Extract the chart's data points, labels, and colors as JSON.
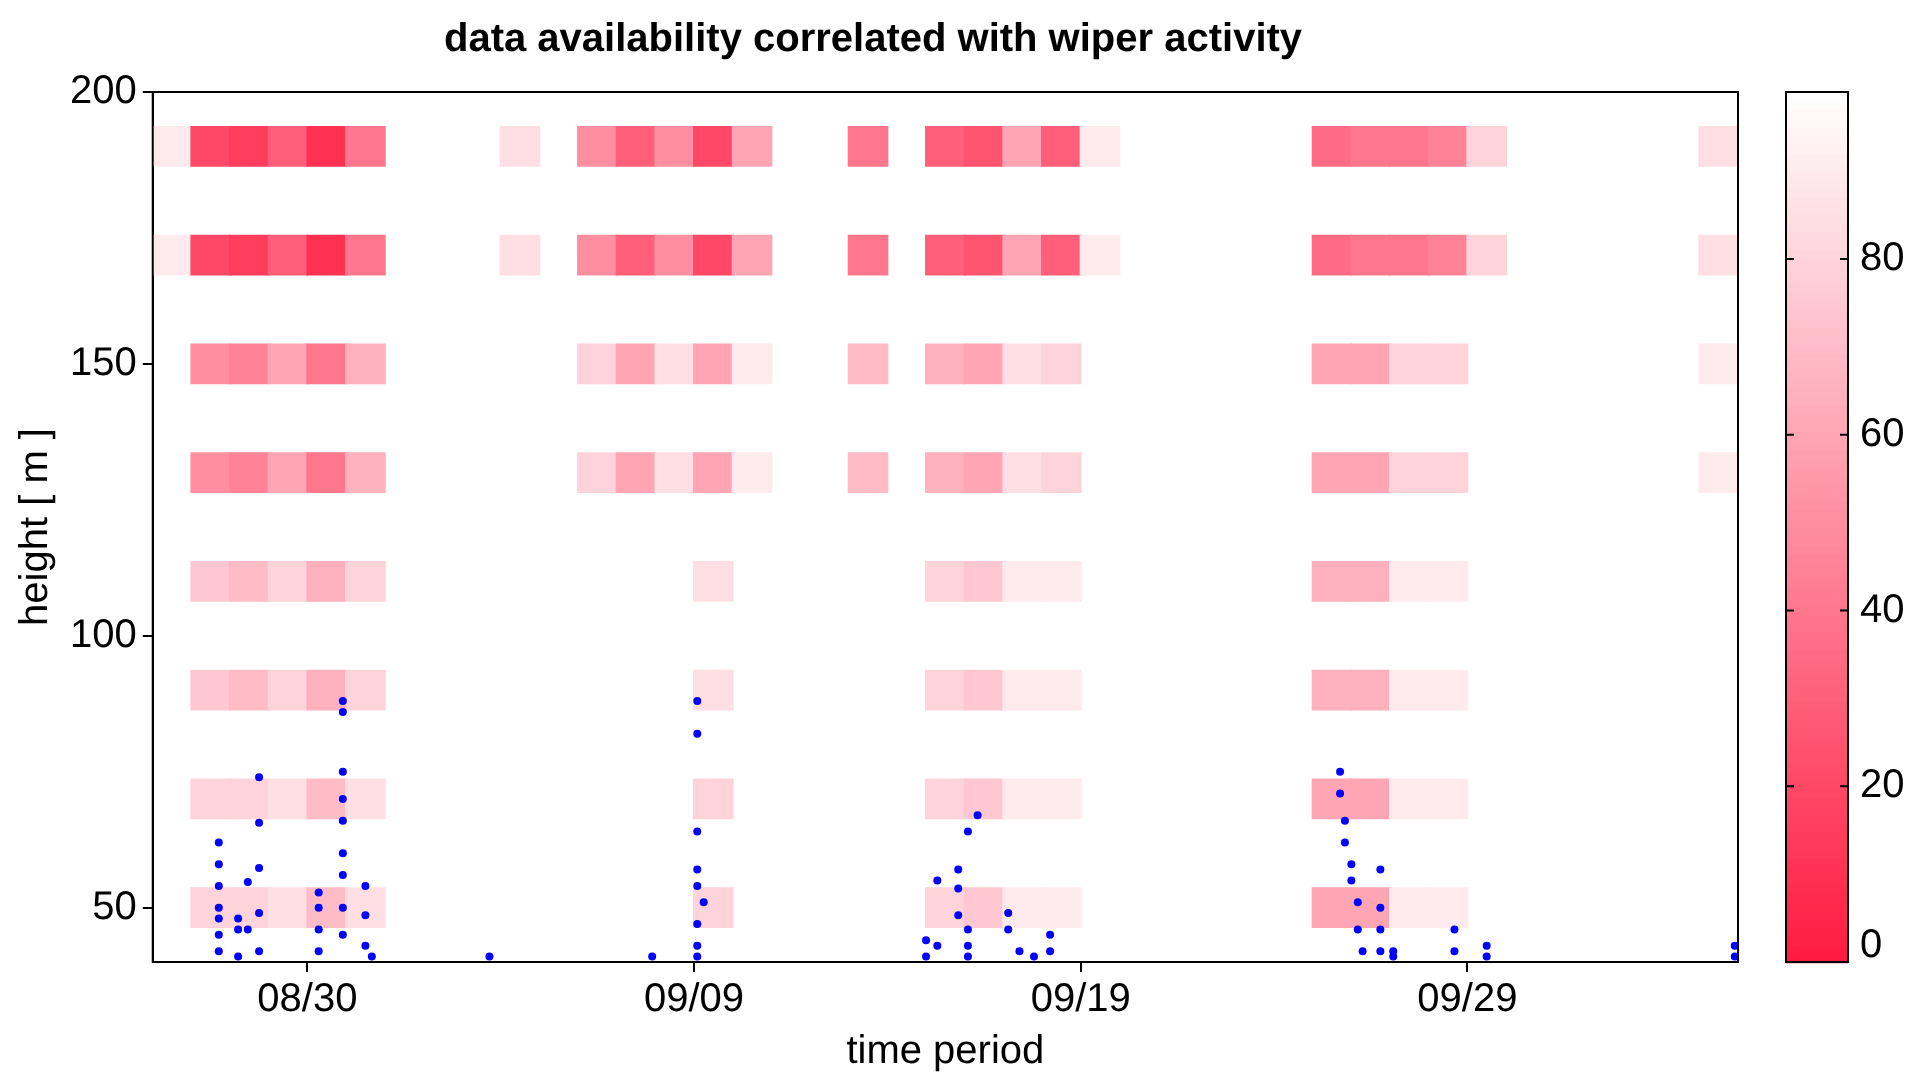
{
  "chart_data": {
    "type": "scatter",
    "title": "data availability correlated with wiper activity",
    "xlabel": "time period",
    "ylabel": "height [ m ]",
    "clim": [
      0,
      99
    ],
    "cticks": [
      0,
      20,
      40,
      60,
      80
    ],
    "legend": false,
    "series": [
      {
        "marker": "square",
        "colors": [
          "#ffeaee",
          "#ffeaee",
          "#ff4867",
          "#ff4867",
          "#ff8ea0",
          "#ff8ea0",
          "#ffc7d1",
          "#ffc7d1",
          "#ffd3da",
          "#ffd3da",
          "#ff3d5d",
          "#ff3d5d",
          "#ff8297",
          "#ff8297",
          "#ffbcc7",
          "#ffbcc7",
          "#ffd3da",
          "#ffd3da",
          "#ff5f7a",
          "#ff5f7a",
          "#ffa5b4",
          "#ffa5b4",
          "#ffd3da",
          "#ffd3da",
          "#ffdfe4",
          "#ffdfe4",
          "#ff3153",
          "#ff3153",
          "#ff778d",
          "#ff778d",
          "#ffb0bd",
          "#ffb0bd",
          "#ffbcc7",
          "#ffbcc7",
          "#ff778d",
          "#ff778d",
          "#ffb0bd",
          "#ffb0bd",
          "#ffd3da",
          "#ffd3da",
          "#ffdfe4",
          "#ffdfe4",
          "#ffdfe4",
          "#ffdfe4",
          "#ff8ea0",
          "#ff8ea0",
          "#ffd3da",
          "#ffd3da",
          "#ff5f7a",
          "#ff5f7a",
          "#ffa5b4",
          "#ffa5b4",
          "#ff8ea0",
          "#ff8ea0",
          "#ffdfe4",
          "#ffdfe4",
          "#ff4867",
          "#ff4867",
          "#ffa5b4",
          "#ffa5b4",
          "#ffdfe4",
          "#ffdfe4",
          "#ffd3da",
          "#ffd3da",
          "#ffa5b4",
          "#ffa5b4",
          "#ffeaee",
          "#ffeaee",
          "#ff778d",
          "#ff778d",
          "#ffbcc7",
          "#ffbcc7",
          "#ff5f7a",
          "#ff5f7a",
          "#ffb0bd",
          "#ffb0bd",
          "#ffd3da",
          "#ffd3da",
          "#ffd3da",
          "#ffd3da",
          "#ff5470",
          "#ff5470",
          "#ffa5b4",
          "#ffa5b4",
          "#ffc7d1",
          "#ffc7d1",
          "#ffc7d1",
          "#ffc7d1",
          "#ffa5b4",
          "#ffa5b4",
          "#ffdfe4",
          "#ffdfe4",
          "#ffeaee",
          "#ffeaee",
          "#ffeaee",
          "#ffeaee",
          "#ff5f7a",
          "#ff5f7a",
          "#ffd3da",
          "#ffd3da",
          "#ffeaee",
          "#ffeaee",
          "#ffeaee",
          "#ffeaee",
          "#ffeaee",
          "#ffeaee",
          "#ff6b84",
          "#ff6b84",
          "#ffa5b4",
          "#ffa5b4",
          "#ffb0bd",
          "#ffb0bd",
          "#ffa5b4",
          "#ffa5b4",
          "#ff778d",
          "#ff778d",
          "#ffa5b4",
          "#ffa5b4",
          "#ffb0bd",
          "#ffb0bd",
          "#ffa5b4",
          "#ffa5b4",
          "#ff778d",
          "#ff778d",
          "#ffd3da",
          "#ffd3da",
          "#ffeaee",
          "#ffeaee",
          "#ffeaee",
          "#ffeaee",
          "#ff8297",
          "#ff8297",
          "#ffd3da",
          "#ffd3da",
          "#ffeaee",
          "#ffeaee",
          "#ffeaee",
          "#ffeaee",
          "#ffd3da",
          "#ffd3da",
          "#ffdfe4",
          "#ffdfe4",
          "#ffeaee",
          "#ffeaee"
        ],
        "x": [
          "--08-26T12:00",
          "--08-26T12:00",
          "--08-27T12:00",
          "--08-27T12:00",
          "--08-27T12:00",
          "--08-27T12:00",
          "--08-27T12:00",
          "--08-27T12:00",
          "--08-27T12:00",
          "--08-27T12:00",
          "--08-28T12:00",
          "--08-28T12:00",
          "--08-28T12:00",
          "--08-28T12:00",
          "--08-28T12:00",
          "--08-28T12:00",
          "--08-28T12:00",
          "--08-28T12:00",
          "--08-29T12:00",
          "--08-29T12:00",
          "--08-29T12:00",
          "--08-29T12:00",
          "--08-29T12:00",
          "--08-29T12:00",
          "--08-29T12:00",
          "--08-29T12:00",
          "--08-30T12:00",
          "--08-30T12:00",
          "--08-30T12:00",
          "--08-30T12:00",
          "--08-30T12:00",
          "--08-30T12:00",
          "--08-30T12:00",
          "--08-30T12:00",
          "--08-31T12:00",
          "--08-31T12:00",
          "--08-31T12:00",
          "--08-31T12:00",
          "--08-31T12:00",
          "--08-31T12:00",
          "--08-31T12:00",
          "--08-31T12:00",
          "--09-04T12:00",
          "--09-04T12:00",
          "--09-06T12:00",
          "--09-06T12:00",
          "--09-06T12:00",
          "--09-06T12:00",
          "--09-07T12:00",
          "--09-07T12:00",
          "--09-07T12:00",
          "--09-07T12:00",
          "--09-08T12:00",
          "--09-08T12:00",
          "--09-08T12:00",
          "--09-08T12:00",
          "--09-09T12:00",
          "--09-09T12:00",
          "--09-09T12:00",
          "--09-09T12:00",
          "--09-09T12:00",
          "--09-09T12:00",
          "--09-09T12:00",
          "--09-09T12:00",
          "--09-10T12:00",
          "--09-10T12:00",
          "--09-10T12:00",
          "--09-10T12:00",
          "--09-13T12:00",
          "--09-13T12:00",
          "--09-13T12:00",
          "--09-13T12:00",
          "--09-15T12:00",
          "--09-15T12:00",
          "--09-15T12:00",
          "--09-15T12:00",
          "--09-15T12:00",
          "--09-15T12:00",
          "--09-15T12:00",
          "--09-15T12:00",
          "--09-16T12:00",
          "--09-16T12:00",
          "--09-16T12:00",
          "--09-16T12:00",
          "--09-16T12:00",
          "--09-16T12:00",
          "--09-16T12:00",
          "--09-16T12:00",
          "--09-17T12:00",
          "--09-17T12:00",
          "--09-17T12:00",
          "--09-17T12:00",
          "--09-17T12:00",
          "--09-17T12:00",
          "--09-17T12:00",
          "--09-17T12:00",
          "--09-18T12:00",
          "--09-18T12:00",
          "--09-18T12:00",
          "--09-18T12:00",
          "--09-18T12:00",
          "--09-18T12:00",
          "--09-18T12:00",
          "--09-18T12:00",
          "--09-19T12:00",
          "--09-19T12:00",
          "--09-25T12:00",
          "--09-25T12:00",
          "--09-25T12:00",
          "--09-25T12:00",
          "--09-25T12:00",
          "--09-25T12:00",
          "--09-25T12:00",
          "--09-25T12:00",
          "--09-26T12:00",
          "--09-26T12:00",
          "--09-26T12:00",
          "--09-26T12:00",
          "--09-26T12:00",
          "--09-26T12:00",
          "--09-26T12:00",
          "--09-26T12:00",
          "--09-27T12:00",
          "--09-27T12:00",
          "--09-27T12:00",
          "--09-27T12:00",
          "--09-27T12:00",
          "--09-27T12:00",
          "--09-27T12:00",
          "--09-27T12:00",
          "--09-28T12:00",
          "--09-28T12:00",
          "--09-28T12:00",
          "--09-28T12:00",
          "--09-28T12:00",
          "--09-28T12:00",
          "--09-28T12:00",
          "--09-28T12:00",
          "--09-29T12:00",
          "--09-29T12:00",
          "--10-05T12:00",
          "--10-05T12:00",
          "--10-05T12:00",
          "--10-05T12:00"
        ],
        "values": [
          190,
          170,
          190,
          170,
          150,
          130,
          110,
          90,
          70,
          50,
          190,
          170,
          150,
          130,
          110,
          90,
          70,
          50,
          190,
          170,
          150,
          130,
          110,
          90,
          70,
          50,
          190,
          170,
          150,
          130,
          110,
          90,
          70,
          50,
          190,
          170,
          150,
          130,
          110,
          90,
          70,
          50,
          190,
          170,
          190,
          170,
          150,
          130,
          190,
          170,
          150,
          130,
          190,
          170,
          150,
          130,
          190,
          170,
          150,
          130,
          110,
          90,
          70,
          50,
          190,
          170,
          150,
          130,
          190,
          170,
          150,
          130,
          190,
          170,
          150,
          130,
          110,
          90,
          70,
          50,
          190,
          170,
          150,
          130,
          110,
          90,
          70,
          50,
          190,
          170,
          150,
          130,
          110,
          90,
          70,
          50,
          190,
          170,
          150,
          130,
          110,
          90,
          70,
          50,
          190,
          170,
          190,
          170,
          150,
          130,
          110,
          90,
          70,
          50,
          190,
          170,
          150,
          130,
          110,
          90,
          70,
          50,
          190,
          170,
          150,
          130,
          110,
          90,
          70,
          50,
          190,
          170,
          150,
          130,
          110,
          90,
          70,
          50,
          190,
          170,
          190,
          170,
          150,
          130
        ],
        "cvalues": [
          90,
          90,
          20,
          20,
          50,
          50,
          75,
          75,
          80,
          80,
          15,
          15,
          45,
          45,
          70,
          70,
          80,
          80,
          30,
          30,
          60,
          60,
          80,
          80,
          85,
          85,
          10,
          10,
          40,
          40,
          65,
          65,
          70,
          70,
          40,
          40,
          65,
          65,
          80,
          80,
          85,
          85,
          85,
          85,
          50,
          50,
          80,
          80,
          30,
          30,
          60,
          60,
          50,
          50,
          85,
          85,
          20,
          20,
          60,
          60,
          85,
          85,
          80,
          80,
          60,
          60,
          90,
          90,
          40,
          40,
          70,
          70,
          30,
          30,
          65,
          65,
          80,
          80,
          80,
          80,
          25,
          25,
          60,
          60,
          75,
          75,
          75,
          75,
          60,
          60,
          85,
          85,
          90,
          90,
          90,
          90,
          30,
          30,
          80,
          80,
          90,
          90,
          90,
          90,
          90,
          90,
          35,
          35,
          60,
          60,
          65,
          65,
          60,
          60,
          40,
          40,
          60,
          60,
          65,
          65,
          60,
          60,
          40,
          40,
          80,
          80,
          90,
          90,
          90,
          90,
          45,
          45,
          80,
          80,
          90,
          90,
          90,
          90,
          80,
          80,
          85,
          85,
          90,
          90
        ]
      },
      {
        "color": "#0000ff",
        "marker": "circle",
        "x": [
          "--08-27T17:00",
          "--08-27T17:00",
          "--08-27T17:00",
          "--08-27T17:00",
          "--08-27T17:00",
          "--08-27T17:00",
          "--08-27T17:00",
          "--08-28T05:00",
          "--08-28T05:00",
          "--08-28T05:00",
          "--08-28T11:00",
          "--08-28T11:00",
          "--08-28T18:00",
          "--08-28T18:00",
          "--08-28T18:00",
          "--08-28T18:00",
          "--08-28T18:00",
          "--08-30T07:00",
          "--08-30T07:00",
          "--08-30T07:00",
          "--08-30T07:00",
          "--08-30T22:00",
          "--08-30T22:00",
          "--08-30T22:00",
          "--08-30T22:00",
          "--08-30T22:00",
          "--08-30T22:00",
          "--08-30T22:00",
          "--08-30T22:00",
          "--08-30T22:00",
          "--08-31T12:00",
          "--08-31T12:00",
          "--08-31T12:00",
          "--08-31T16:00",
          "--09-03T17:00",
          "--09-07T22:00",
          "--09-09T02:00",
          "--09-09T02:00",
          "--09-09T02:00",
          "--09-09T02:00",
          "--09-09T02:00",
          "--09-09T02:00",
          "--09-09T02:00",
          "--09-09T02:00",
          "--09-09T06:00",
          "--09-15T00:00",
          "--09-15T00:00",
          "--09-15T07:00",
          "--09-15T07:00",
          "--09-15T20:00",
          "--09-15T20:00",
          "--09-15T20:00",
          "--09-16T02:00",
          "--09-16T02:00",
          "--09-16T02:00",
          "--09-16T02:00",
          "--09-16T08:00",
          "--09-17T03:00",
          "--09-17T03:00",
          "--09-17T10:00",
          "--09-17T19:00",
          "--09-18T05:00",
          "--09-18T05:00",
          "--09-25T17:00",
          "--09-25T17:00",
          "--09-25T20:00",
          "--09-25T20:00",
          "--09-26T00:00",
          "--09-26T00:00",
          "--09-26T04:00",
          "--09-26T04:00",
          "--09-26T07:00",
          "--09-26T18:00",
          "--09-26T18:00",
          "--09-26T18:00",
          "--09-26T18:00",
          "--09-27T02:00",
          "--09-27T02:00",
          "--09-28T16:00",
          "--09-28T16:00",
          "--09-29T12:00",
          "--09-29T12:00",
          "--10-05T22:00",
          "--10-05T22:00"
        ],
        "values": [
          62,
          58,
          54,
          50,
          48,
          45,
          42,
          48,
          46,
          41,
          54.7,
          46,
          74,
          65.6,
          57.3,
          49,
          42,
          52.8,
          50,
          46,
          42,
          88,
          86,
          75,
          70,
          66,
          60,
          56,
          50,
          45,
          54,
          48.6,
          43,
          41,
          41,
          41,
          88,
          82,
          64,
          57,
          54,
          47,
          43,
          41,
          51,
          44,
          41,
          55,
          43,
          57,
          53.5,
          48.6,
          46,
          43,
          41,
          64,
          67,
          49,
          46,
          42,
          41,
          45,
          42,
          75,
          71,
          66,
          62,
          58,
          55,
          51,
          46,
          42,
          57,
          50,
          46,
          42,
          42,
          41,
          46,
          42,
          43,
          41,
          43,
          41
        ]
      }
    ],
    "xlim": [
      "--08-26",
      "--10-06"
    ],
    "xticks": [
      {
        "value": "--08-30",
        "label": "08/30"
      },
      {
        "value": "--09-09",
        "label": "09/09"
      },
      {
        "value": "--09-19",
        "label": "09/19"
      },
      {
        "value": "--09-29",
        "label": "09/29"
      }
    ],
    "ylim": [
      40,
      200
    ],
    "yticks": [
      50,
      100,
      150,
      200
    ]
  }
}
